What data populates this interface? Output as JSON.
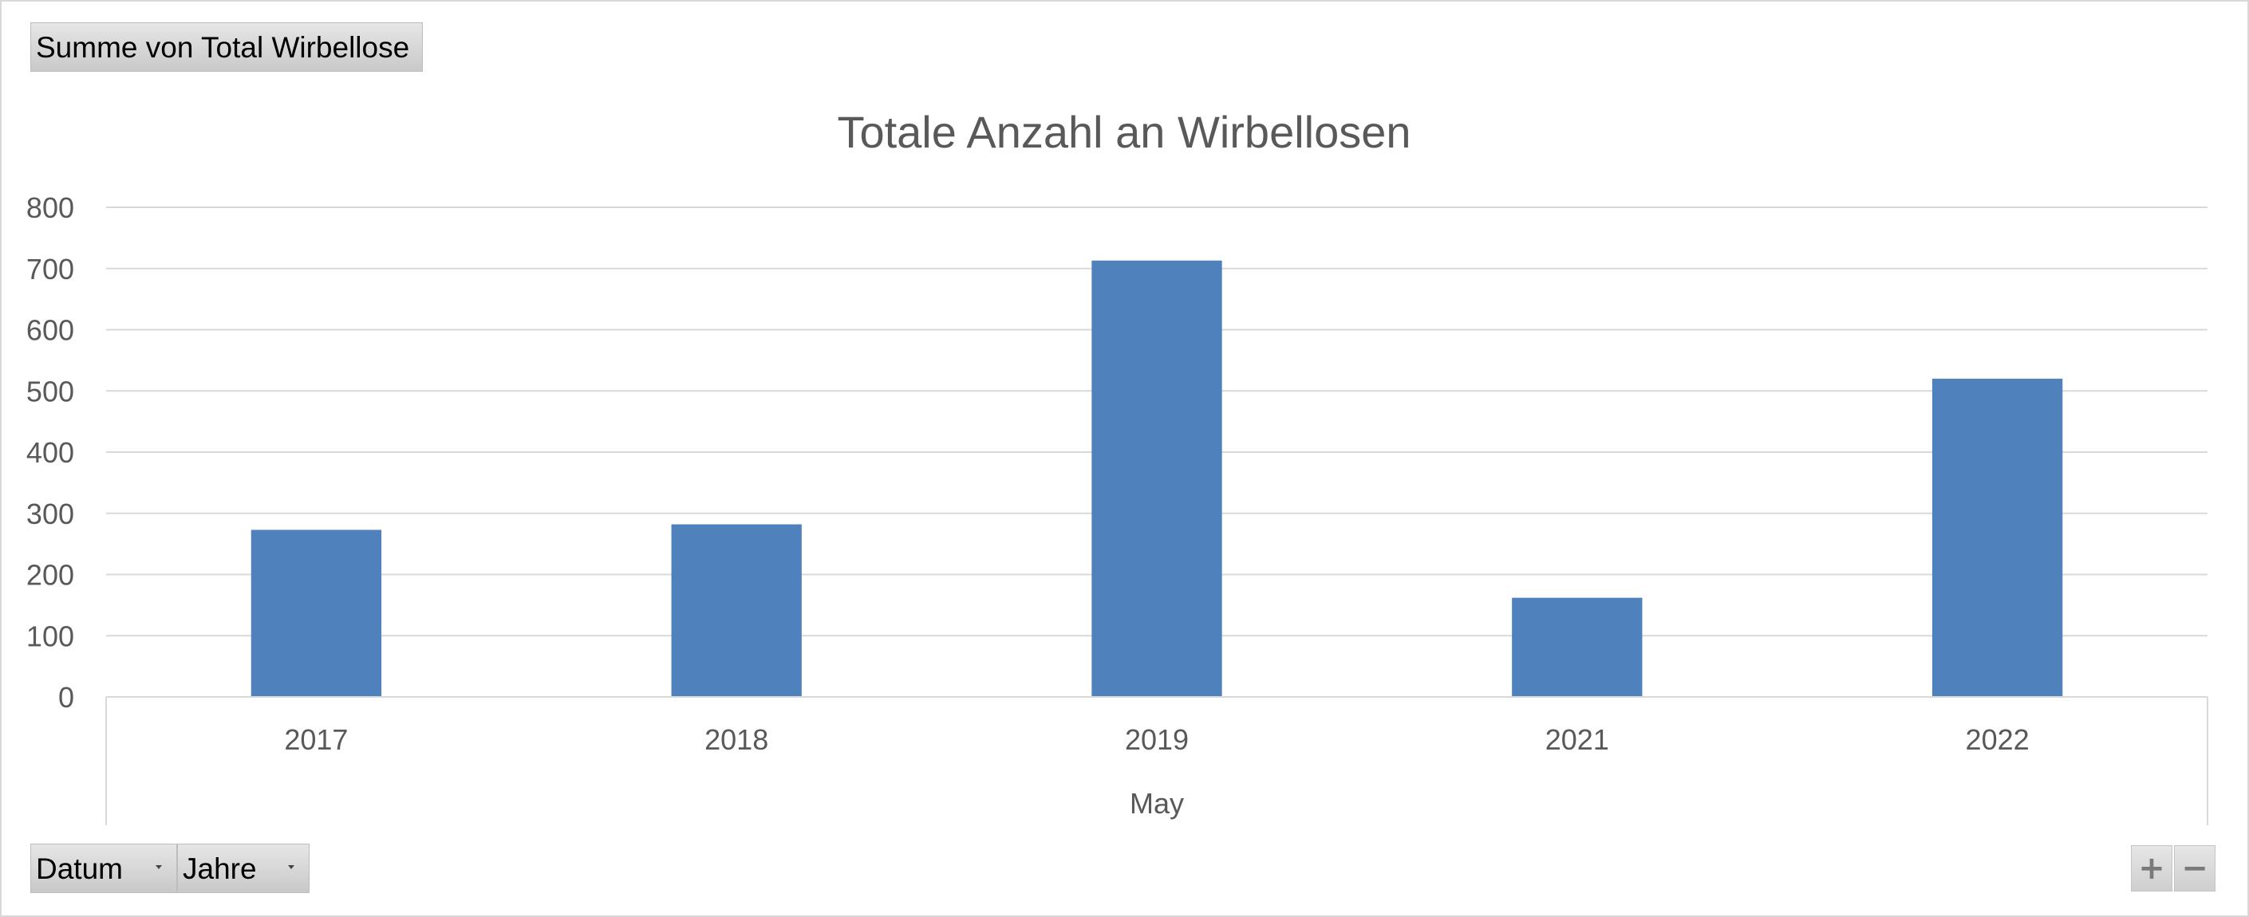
{
  "pivot": {
    "value_field": "Summe von Total Wirbellose",
    "row_fields": [
      {
        "label": "Datum"
      },
      {
        "label": "Jahre"
      }
    ]
  },
  "zoom": {
    "plus": "+",
    "minus": "−"
  },
  "chart_data": {
    "type": "bar",
    "title": "Totale Anzahl an Wirbellosen",
    "categories": [
      "2017",
      "2018",
      "2019",
      "2021",
      "2022"
    ],
    "group_label": "May",
    "values": [
      273,
      282,
      713,
      162,
      520
    ],
    "ylim": [
      0,
      800
    ],
    "yticks": [
      0,
      100,
      200,
      300,
      400,
      500,
      600,
      700,
      800
    ],
    "grid": true,
    "legend": "none",
    "bar_color": "#4f81bd"
  }
}
